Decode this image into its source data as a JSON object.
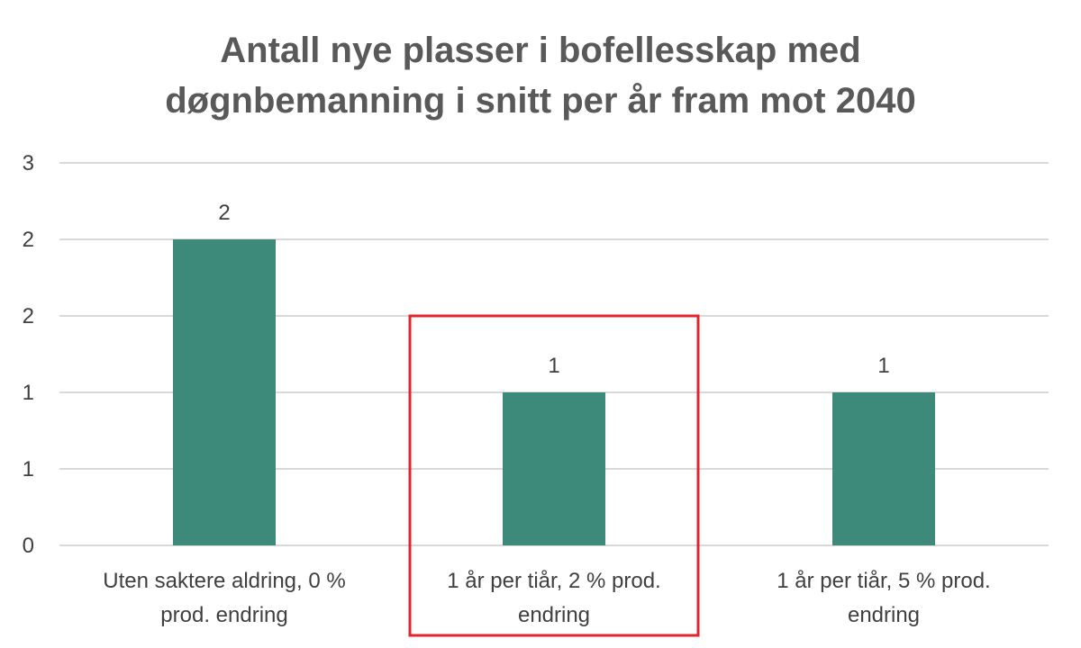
{
  "chart_data": {
    "type": "bar",
    "title_lines": [
      "Antall nye plasser i bofellesskap med",
      "døgnbemanning i snitt per år fram mot 2040"
    ],
    "categories": [
      [
        "Uten saktere aldring, 0 %",
        "prod. endring"
      ],
      [
        "1 år per tiår, 2 % prod.",
        "endring"
      ],
      [
        "1 år per tiår, 5 % prod.",
        "endring"
      ]
    ],
    "values": [
      2,
      1,
      1
    ],
    "data_labels": [
      "2",
      "1",
      "1"
    ],
    "ytick_values": [
      0,
      0.5,
      1,
      1.5,
      2,
      2.5
    ],
    "ytick_labels": [
      "0",
      "1",
      "1",
      "2",
      "2",
      "3"
    ],
    "ylim": [
      0,
      2.5
    ],
    "grid": true,
    "highlighted_category_index": 1,
    "colors": {
      "bar": "#3d8a7a",
      "grid": "#d9d9d9",
      "highlight": "#e3242b",
      "text": "#404040",
      "title": "#595959"
    }
  }
}
